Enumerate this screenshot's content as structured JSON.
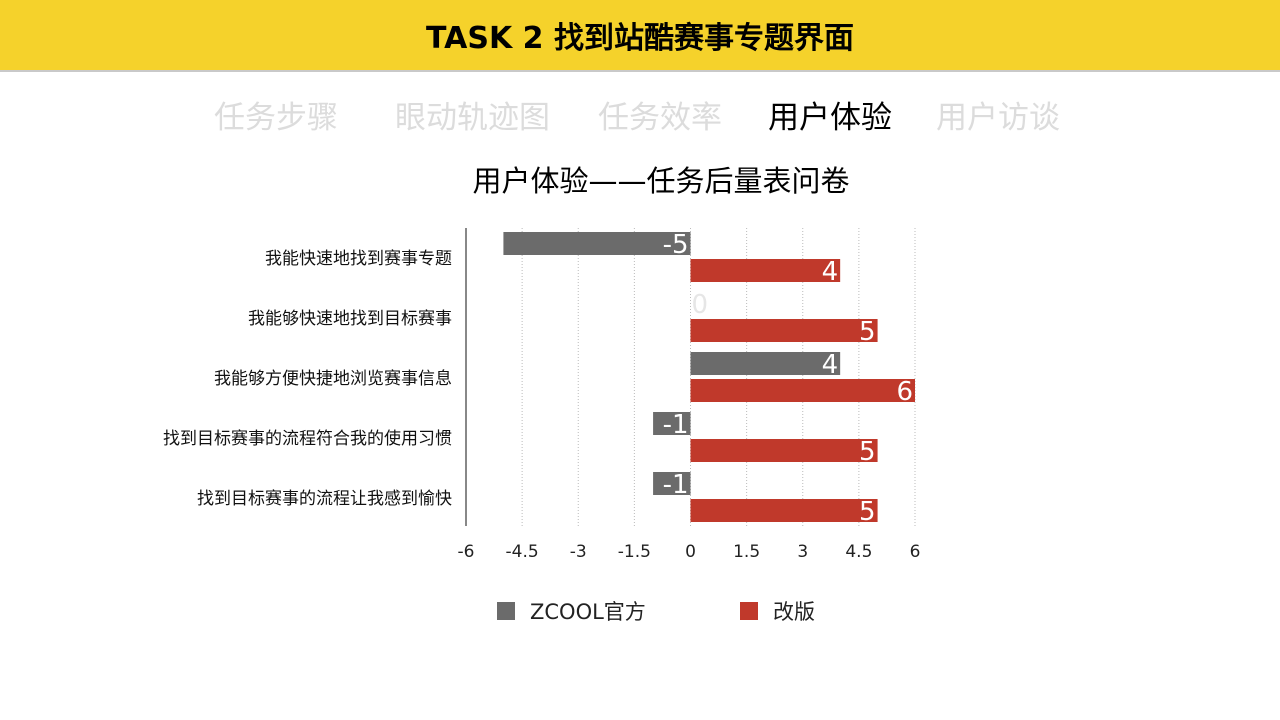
{
  "header": {
    "title": "TASK 2  找到站酷赛事专题界面"
  },
  "tabs": [
    {
      "label": "任务步骤",
      "active": false
    },
    {
      "label": "眼动轨迹图",
      "active": false
    },
    {
      "label": "任务效率",
      "active": false
    },
    {
      "label": "用户体验",
      "active": true
    },
    {
      "label": "用户访谈",
      "active": false
    }
  ],
  "chart_data": {
    "type": "bar",
    "orientation": "horizontal",
    "title": "用户体验——任务后量表问卷",
    "categories": [
      "我能快速地找到赛事专题",
      "我能够快速地找到目标赛事",
      "我能够方便快捷地浏览赛事信息",
      "找到目标赛事的流程符合我的使用习惯",
      "找到目标赛事的流程让我感到愉快"
    ],
    "series": [
      {
        "name": "ZCOOL官方",
        "color": "#6b6b6b",
        "values": [
          -5,
          0,
          4,
          -1,
          -1
        ]
      },
      {
        "name": "改版",
        "color": "#c0392b",
        "values": [
          4,
          5,
          6,
          5,
          5
        ]
      }
    ],
    "xlim": [
      -6,
      6
    ],
    "xticks": [
      "-6",
      "-4.5",
      "-3",
      "-1.5",
      "0",
      "1.5",
      "3",
      "4.5",
      "6"
    ],
    "grid": true,
    "legend": "bottom"
  }
}
